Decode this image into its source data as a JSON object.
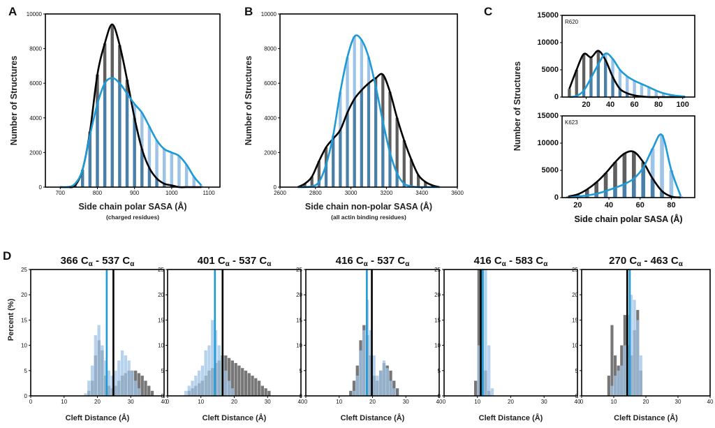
{
  "colors": {
    "dark": "#5f5f5f",
    "light": "#9dc3e6",
    "overlap": "#4a7fa8",
    "blue_line": "#1e9ad6",
    "black_line": "#000000"
  },
  "chart_data": [
    {
      "panel": "A",
      "type": "bar",
      "xlabel": "Side chain polar SASA (Å)",
      "xnote": "(charged residues)",
      "ylabel": "Number of Structures",
      "xlim": [
        660,
        1130
      ],
      "ylim": [
        0,
        10000
      ],
      "xticks": [
        700,
        800,
        900,
        1000,
        1100
      ],
      "yticks": [
        0,
        2000,
        4000,
        6000,
        8000,
        10000
      ],
      "x": [
        700,
        720,
        740,
        760,
        780,
        800,
        820,
        840,
        860,
        880,
        900,
        920,
        940,
        960,
        980,
        1000,
        1020,
        1040,
        1060,
        1080
      ],
      "series": [
        {
          "values": [
            0,
            0,
            100,
            1000,
            3200,
            6500,
            8300,
            9400,
            8200,
            6200,
            4000,
            2200,
            1100,
            500,
            200,
            100,
            0,
            0,
            0,
            0
          ]
        },
        {
          "values": [
            0,
            0,
            200,
            1000,
            3000,
            4800,
            6000,
            6300,
            6000,
            5400,
            4800,
            4300,
            3500,
            2700,
            2200,
            2000,
            1800,
            1300,
            600,
            100
          ]
        }
      ]
    },
    {
      "panel": "B",
      "type": "bar",
      "xlabel": "Side chain non-polar SASA (Å)",
      "xnote": "(all actin binding residues)",
      "ylabel": "Number of Structures",
      "xlim": [
        2600,
        3600
      ],
      "ylim": [
        0,
        10000
      ],
      "xticks": [
        2600,
        2800,
        3000,
        3200,
        3400,
        3600
      ],
      "yticks": [
        0,
        2000,
        4000,
        6000,
        8000,
        10000
      ],
      "x": [
        2700,
        2740,
        2780,
        2820,
        2860,
        2900,
        2940,
        2980,
        3020,
        3060,
        3100,
        3140,
        3180,
        3220,
        3260,
        3300,
        3340,
        3380,
        3420,
        3460,
        3500
      ],
      "series": [
        {
          "values": [
            0,
            200,
            600,
            1500,
            2300,
            2800,
            3300,
            4300,
            5100,
            5600,
            6000,
            6300,
            6500,
            5500,
            4000,
            2700,
            1600,
            700,
            300,
            100,
            0
          ]
        },
        {
          "values": [
            0,
            0,
            50,
            300,
            1300,
            3000,
            5500,
            7500,
            8700,
            8500,
            7500,
            5800,
            3800,
            2000,
            800,
            200,
            50,
            0,
            0,
            0,
            0
          ]
        }
      ]
    },
    {
      "panel": "C-R620",
      "type": "bar",
      "inset_label": "R620",
      "xlim": [
        0,
        110
      ],
      "ylim": [
        0,
        15000
      ],
      "xticks": [
        20,
        40,
        60,
        80,
        100
      ],
      "yticks": [
        0,
        5000,
        10000,
        15000
      ],
      "x": [
        6,
        12,
        18,
        24,
        30,
        36,
        42,
        48,
        54,
        60,
        66,
        72,
        78,
        84,
        90,
        96,
        102
      ],
      "series": [
        {
          "values": [
            1500,
            5000,
            7900,
            7300,
            8500,
            6800,
            3700,
            1500,
            700,
            300,
            100,
            0,
            0,
            0,
            0,
            0,
            0
          ]
        },
        {
          "values": [
            0,
            200,
            1200,
            3500,
            6000,
            8000,
            7000,
            5000,
            3800,
            3000,
            2400,
            1800,
            1200,
            700,
            400,
            200,
            100
          ]
        }
      ]
    },
    {
      "panel": "C-K623",
      "type": "bar",
      "inset_label": "K623",
      "xlabel": "Side chain polar SASA (Å)",
      "xlim": [
        10,
        95
      ],
      "ylim": [
        0,
        15000
      ],
      "xticks": [
        20,
        40,
        60,
        80
      ],
      "yticks": [
        0,
        5000,
        10000,
        15000
      ],
      "x": [
        14,
        20,
        26,
        32,
        38,
        44,
        50,
        56,
        62,
        68,
        74,
        80,
        86
      ],
      "series": [
        {
          "values": [
            200,
            600,
            1500,
            2800,
            4500,
            6500,
            8100,
            8400,
            6500,
            3500,
            1200,
            200,
            0
          ]
        },
        {
          "values": [
            0,
            200,
            400,
            700,
            1200,
            1800,
            2500,
            3500,
            5500,
            9000,
            11500,
            5000,
            300
          ]
        }
      ]
    },
    {
      "panel": "D-1",
      "type": "bar",
      "title_main": "366 C",
      "title_sub": "α",
      "title_main2": " - 537 C",
      "title_sub2": "α",
      "xlabel": "Cleft Distance (Å)",
      "xlim": [
        0,
        40
      ],
      "ylim": [
        0,
        25
      ],
      "xticks": [
        0,
        10,
        20,
        30,
        40
      ],
      "yticks": [
        0,
        5,
        10,
        15,
        20,
        25
      ],
      "bin_width": 1,
      "vlines": {
        "blue": 22.8,
        "black": 24.8
      },
      "dark_bars": [
        [
          17,
          1
        ],
        [
          18,
          3
        ],
        [
          19,
          8
        ],
        [
          20,
          11
        ],
        [
          21,
          9
        ],
        [
          22,
          4
        ],
        [
          23,
          2
        ],
        [
          24,
          1.5
        ],
        [
          25,
          2
        ],
        [
          26,
          3
        ],
        [
          27,
          4
        ],
        [
          28,
          4.5
        ],
        [
          29,
          5
        ],
        [
          30,
          5
        ],
        [
          31,
          5
        ],
        [
          32,
          4.5
        ],
        [
          33,
          4
        ],
        [
          34,
          3
        ],
        [
          35,
          2
        ],
        [
          36,
          1
        ]
      ],
      "light_bars": [
        [
          16,
          0.5
        ],
        [
          17,
          3
        ],
        [
          18,
          6
        ],
        [
          19,
          12
        ],
        [
          20,
          14
        ],
        [
          21,
          10
        ],
        [
          22,
          7
        ],
        [
          23,
          5
        ],
        [
          24,
          4
        ],
        [
          25,
          5
        ],
        [
          26,
          7
        ],
        [
          27,
          9
        ],
        [
          28,
          8
        ],
        [
          29,
          7
        ],
        [
          30,
          5
        ],
        [
          31,
          3
        ],
        [
          32,
          1.5
        ]
      ]
    },
    {
      "panel": "D-2",
      "type": "bar",
      "title_main": "401 C",
      "title_sub": "α",
      "title_main2": " - 537 C",
      "title_sub2": "α",
      "xlabel": "Cleft Distance (Å)",
      "xlim": [
        0,
        40
      ],
      "ylim": [
        0,
        25
      ],
      "xticks": [
        0,
        10,
        20,
        30,
        40
      ],
      "yticks": [
        0,
        5,
        10,
        15,
        20,
        25
      ],
      "bin_width": 1,
      "vlines": {
        "blue": 14.2,
        "black": 16.5
      },
      "dark_bars": [
        [
          6,
          1
        ],
        [
          7,
          1.5
        ],
        [
          8,
          2
        ],
        [
          9,
          2.5
        ],
        [
          10,
          3
        ],
        [
          11,
          4
        ],
        [
          12,
          5
        ],
        [
          13,
          5.5
        ],
        [
          14,
          6.5
        ],
        [
          15,
          7
        ],
        [
          16,
          8
        ],
        [
          17,
          8
        ],
        [
          18,
          7.5
        ],
        [
          19,
          7
        ],
        [
          20,
          6.5
        ],
        [
          21,
          6
        ],
        [
          22,
          5.5
        ],
        [
          23,
          5
        ],
        [
          24,
          4.5
        ],
        [
          25,
          4
        ],
        [
          26,
          3.5
        ],
        [
          27,
          3
        ],
        [
          28,
          2
        ],
        [
          29,
          1.5
        ],
        [
          30,
          1
        ]
      ],
      "light_bars": [
        [
          5,
          1
        ],
        [
          6,
          2
        ],
        [
          7,
          3
        ],
        [
          8,
          4
        ],
        [
          9,
          5
        ],
        [
          10,
          6
        ],
        [
          11,
          9
        ],
        [
          12,
          10
        ],
        [
          13,
          15
        ],
        [
          14,
          13
        ],
        [
          15,
          10
        ],
        [
          16,
          8
        ],
        [
          17,
          5
        ],
        [
          18,
          3
        ],
        [
          19,
          1.5
        ]
      ]
    },
    {
      "panel": "D-3",
      "type": "bar",
      "title_main": "416 C",
      "title_sub": "α",
      "title_main2": " - 537 C",
      "title_sub2": "α",
      "xlabel": "Cleft Distance (Å)",
      "xlim": [
        0,
        40
      ],
      "ylim": [
        0,
        25
      ],
      "xticks": [
        0,
        10,
        20,
        30,
        40
      ],
      "yticks": [
        0,
        5,
        10,
        15,
        20,
        25
      ],
      "bin_width": 1,
      "vlines": {
        "blue": 18.3,
        "black": 19.8
      },
      "dark_bars": [
        [
          13,
          1
        ],
        [
          14,
          3
        ],
        [
          15,
          6
        ],
        [
          16,
          11
        ],
        [
          17,
          14
        ],
        [
          18,
          12
        ],
        [
          19,
          8
        ],
        [
          20,
          4
        ],
        [
          21,
          3
        ],
        [
          22,
          5
        ],
        [
          23,
          6.5
        ],
        [
          24,
          6
        ],
        [
          25,
          5
        ],
        [
          26,
          3
        ],
        [
          27,
          1.5
        ]
      ],
      "light_bars": [
        [
          14,
          1
        ],
        [
          15,
          4
        ],
        [
          16,
          9
        ],
        [
          17,
          13
        ],
        [
          18,
          19
        ],
        [
          19,
          13
        ],
        [
          20,
          8
        ],
        [
          21,
          4
        ],
        [
          22,
          5
        ],
        [
          23,
          7
        ],
        [
          24,
          5.5
        ],
        [
          25,
          3
        ],
        [
          26,
          1.5
        ]
      ]
    },
    {
      "panel": "D-4",
      "type": "bar",
      "title_main": "416 C",
      "title_sub": "α",
      "title_main2": " - 583 C",
      "title_sub2": "α",
      "xlabel": "Cleft Distance (Å)",
      "xlim": [
        0,
        40
      ],
      "ylim": [
        0,
        25
      ],
      "xticks": [
        0,
        10,
        20,
        30,
        40
      ],
      "yticks": [
        0,
        5,
        10,
        15,
        20,
        25
      ],
      "bin_width": 1,
      "vlines": {
        "blue": 11.6,
        "black": 11.0
      },
      "dark_bars": [
        [
          9,
          3
        ],
        [
          10,
          25
        ],
        [
          11,
          25
        ],
        [
          12,
          5
        ],
        [
          13,
          1
        ]
      ],
      "light_bars": [
        [
          10,
          10
        ],
        [
          11,
          25
        ],
        [
          12,
          25
        ],
        [
          13,
          10
        ],
        [
          14,
          1.5
        ]
      ]
    },
    {
      "panel": "D-5",
      "type": "bar",
      "title_main": "270 C",
      "title_sub": "α",
      "title_main2": " - 463 C",
      "title_sub2": "α",
      "xlabel": "Cleft Distance (Å)",
      "xlim": [
        0,
        40
      ],
      "ylim": [
        0,
        25
      ],
      "xticks": [
        0,
        10,
        20,
        30,
        40
      ],
      "yticks": [
        0,
        5,
        10,
        15,
        20,
        25
      ],
      "bin_width": 1,
      "vlines": {
        "blue": 15.0,
        "black": 14.2
      },
      "dark_bars": [
        [
          8,
          4
        ],
        [
          9,
          14
        ],
        [
          10,
          8
        ],
        [
          11,
          6
        ],
        [
          12,
          10
        ],
        [
          13,
          16
        ],
        [
          14,
          10
        ],
        [
          15,
          8
        ],
        [
          16,
          13
        ],
        [
          17,
          17
        ],
        [
          18,
          5
        ]
      ],
      "light_bars": [
        [
          9,
          2
        ],
        [
          10,
          4
        ],
        [
          11,
          5
        ],
        [
          12,
          6
        ],
        [
          13,
          10
        ],
        [
          14,
          16
        ],
        [
          15,
          20
        ],
        [
          16,
          19
        ],
        [
          17,
          15
        ],
        [
          18,
          8
        ]
      ]
    }
  ],
  "labels": {
    "A": "A",
    "B": "B",
    "C": "C",
    "D": "D",
    "d_ylabel": "Percent (%)",
    "c_ylabel": "Number of Structures"
  }
}
